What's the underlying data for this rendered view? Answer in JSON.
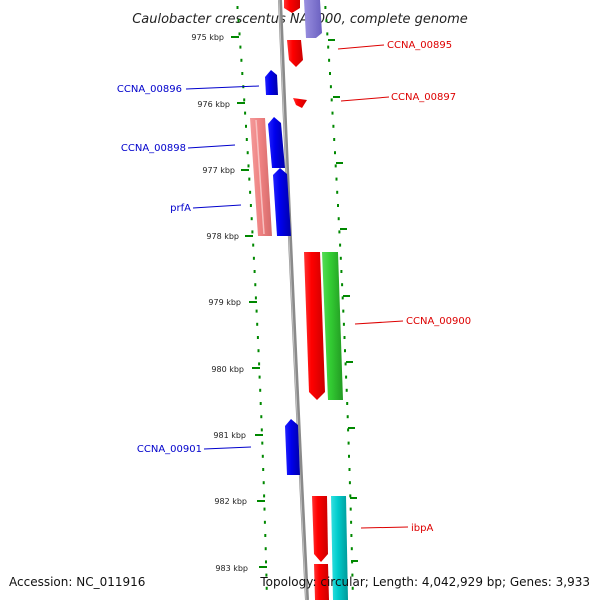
{
  "title": "Caulobacter crescentus NA1000, complete genome",
  "footer": {
    "accession": "Accession: NC_011916",
    "summary": "Topology: circular; Length: 4,042,929 bp; Genes: 3,933"
  },
  "colors": {
    "forward_cds": "#ff0000",
    "forward_cds_light": "#f08080",
    "reverse_cds": "#0000ee",
    "reverse_cds_light": "#7a70d0",
    "green_feature": "#33cc33",
    "cyan_feature": "#00cccc",
    "backbone": "#888888",
    "ticks": "#008800",
    "label_forward": "#dd0000",
    "label_reverse": "#0000cc"
  },
  "ticks": [
    "975 kbp",
    "976 kbp",
    "977 kbp",
    "978 kbp",
    "979 kbp",
    "980 kbp",
    "981 kbp",
    "982 kbp",
    "983 kbp"
  ],
  "labels": [
    {
      "text": "CCNA_00895",
      "strand": "forward"
    },
    {
      "text": "CCNA_00896",
      "strand": "reverse"
    },
    {
      "text": "CCNA_00897",
      "strand": "forward"
    },
    {
      "text": "CCNA_00898",
      "strand": "reverse"
    },
    {
      "text": "prfA",
      "strand": "reverse"
    },
    {
      "text": "CCNA_00900",
      "strand": "forward"
    },
    {
      "text": "CCNA_00901",
      "strand": "reverse"
    },
    {
      "text": "ibpA",
      "strand": "forward"
    }
  ]
}
